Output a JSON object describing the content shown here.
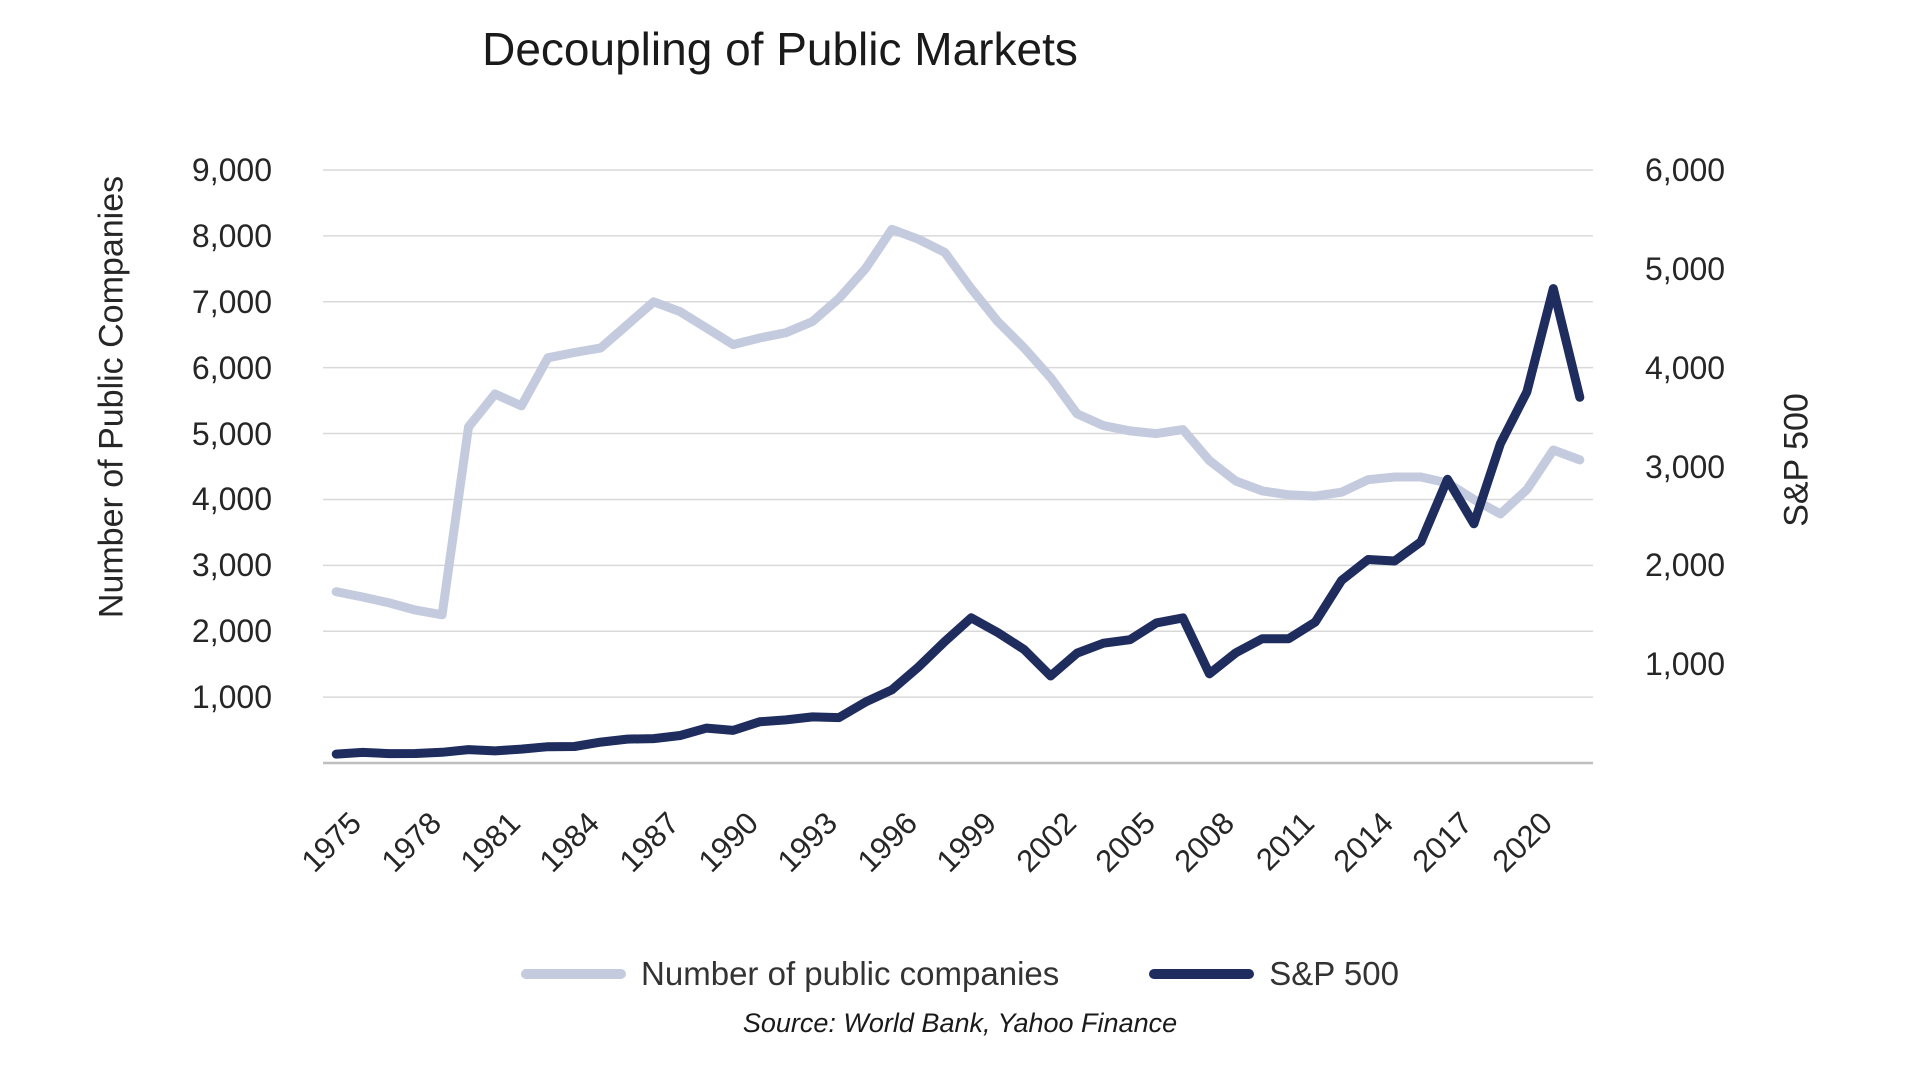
{
  "chart_data": {
    "type": "line",
    "title": "Decoupling of Public Markets",
    "x": [
      1975,
      1976,
      1977,
      1978,
      1979,
      1980,
      1981,
      1982,
      1983,
      1984,
      1985,
      1986,
      1987,
      1988,
      1989,
      1990,
      1991,
      1992,
      1993,
      1994,
      1995,
      1996,
      1997,
      1998,
      1999,
      2000,
      2001,
      2002,
      2003,
      2004,
      2005,
      2006,
      2007,
      2008,
      2009,
      2010,
      2011,
      2012,
      2013,
      2014,
      2015,
      2016,
      2017,
      2018,
      2019,
      2020,
      2021,
      2022
    ],
    "series": [
      {
        "name": "Number of public companies",
        "axis": "left",
        "color": "#C5CBDE",
        "values": [
          2600,
          2520,
          2430,
          2320,
          2250,
          5100,
          5600,
          5420,
          6150,
          6230,
          6300,
          6650,
          7000,
          6850,
          6600,
          6350,
          6450,
          6530,
          6700,
          7050,
          7500,
          8100,
          7950,
          7750,
          7200,
          6700,
          6300,
          5850,
          5300,
          5120,
          5040,
          5000,
          5060,
          4590,
          4280,
          4130,
          4070,
          4050,
          4110,
          4300,
          4340,
          4340,
          4250,
          4000,
          3780,
          4150,
          4750,
          4600
        ]
      },
      {
        "name": "S&P 500",
        "axis": "right",
        "color": "#1F2C5E",
        "values": [
          90,
          107,
          95,
          96,
          108,
          136,
          122,
          141,
          165,
          167,
          211,
          242,
          247,
          278,
          353,
          330,
          417,
          436,
          466,
          459,
          616,
          741,
          970,
          1229,
          1469,
          1320,
          1148,
          880,
          1112,
          1212,
          1248,
          1418,
          1468,
          903,
          1115,
          1258,
          1258,
          1426,
          1848,
          2059,
          2044,
          2239,
          2870,
          2420,
          3231,
          3756,
          4800,
          3700
        ]
      }
    ],
    "axes": {
      "left": {
        "title": "Number of Public Companies",
        "min": 0,
        "max": 9000,
        "tick_step": 1000
      },
      "right": {
        "title": "S&P 500",
        "min": 0,
        "max": 6000,
        "tick_step": 1000
      },
      "x": {
        "tick_start": 1975,
        "tick_step": 3,
        "tick_end": 2020
      }
    },
    "grid": true,
    "legend_position": "bottom",
    "source": "Source: World Bank, Yahoo Finance",
    "colors": {
      "gridline": "#D9D9D9",
      "axis_line": "#BFBFBF",
      "tick_text": "#262626"
    }
  }
}
